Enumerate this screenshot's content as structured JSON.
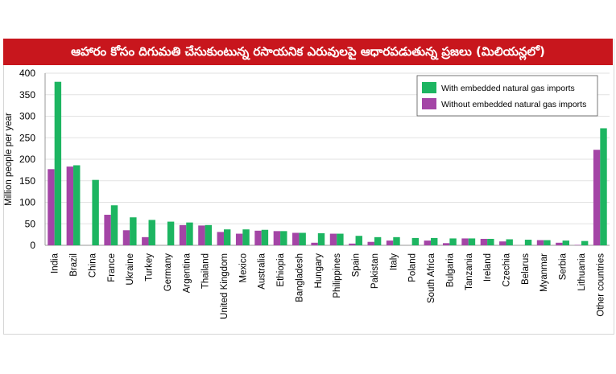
{
  "chart_data": {
    "type": "bar",
    "title": "ఆహారం కోసం దిగుమతి చేసుకుంటున్న రసాయనిక ఎరువులపై ఆధారపడుతున్న ప్రజలు (మిలియన్లలో)",
    "ylabel": "Million people per year",
    "xlabel": "",
    "ylim": [
      0,
      400
    ],
    "yticks": [
      0,
      50,
      100,
      150,
      200,
      250,
      300,
      350,
      400
    ],
    "legend_position": "top-right",
    "categories": [
      "India",
      "Brazil",
      "China",
      "France",
      "Ukraine",
      "Turkey",
      "Germany",
      "Argentina",
      "Thailand",
      "United Kingdom",
      "Mexico",
      "Australia",
      "Ethiopia",
      "Bangladesh",
      "Hungary",
      "Philippines",
      "Spain",
      "Pakistan",
      "Italy",
      "Poland",
      "South Africa",
      "Bulgaria",
      "Tanzania",
      "Ireland",
      "Czechia",
      "Belarus",
      "Myanmar",
      "Serbia",
      "Lithuania",
      "Other countries"
    ],
    "series": [
      {
        "name": "Without embedded natural gas imports",
        "color": "#a445a6",
        "values": [
          177,
          183,
          0,
          71,
          35,
          19,
          0,
          47,
          46,
          31,
          27,
          34,
          33,
          29,
          6,
          27,
          4,
          8,
          11,
          0,
          11,
          5,
          16,
          15,
          9,
          0,
          12,
          6,
          1,
          222
        ]
      },
      {
        "name": "With embedded natural gas imports",
        "color": "#1db561",
        "values": [
          380,
          186,
          152,
          93,
          65,
          59,
          55,
          53,
          47,
          37,
          37,
          36,
          33,
          29,
          28,
          27,
          22,
          19,
          19,
          17,
          17,
          16,
          16,
          15,
          14,
          13,
          12,
          11,
          10,
          272
        ]
      }
    ]
  }
}
